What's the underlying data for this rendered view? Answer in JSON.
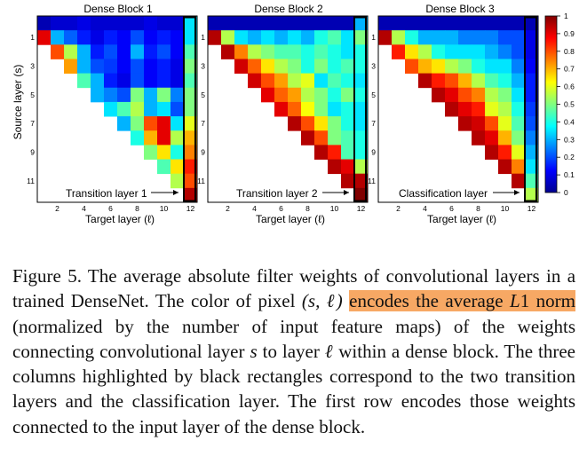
{
  "figure": {
    "panels": [
      {
        "title": "Dense Block 1",
        "annotation": "Transition layer 1"
      },
      {
        "title": "Dense Block 2",
        "annotation": "Transition layer 2"
      },
      {
        "title": "Dense Block 3",
        "annotation": "Classification layer"
      }
    ],
    "y_axis_label": "Source layer (s)",
    "x_axis_label": "Target layer (ℓ)",
    "x_ticks": [
      "2",
      "4",
      "6",
      "8",
      "10",
      "12"
    ],
    "y_ticks": [
      "1",
      "3",
      "5",
      "7",
      "9",
      "11"
    ],
    "colorbar_ticks": [
      "0",
      "0.1",
      "0.2",
      "0.3",
      "0.4",
      "0.5",
      "0.6",
      "0.7",
      "0.8",
      "0.9",
      "1"
    ]
  },
  "chart_data": {
    "type": "heatmap",
    "title": "",
    "xlabel": "Target layer (ℓ)",
    "ylabel": "Source layer (s)",
    "colorbar_range": [
      0,
      1
    ],
    "panels": [
      {
        "name": "Dense Block 1",
        "rows": [
          [
            0.05,
            0.08,
            0.08,
            0.1,
            0.08,
            0.08,
            0.08,
            0.08,
            0.1,
            0.08,
            0.08,
            0.35
          ],
          [
            0.9,
            0.3,
            0.22,
            0.15,
            0.1,
            0.15,
            0.12,
            0.2,
            0.12,
            0.15,
            0.12,
            0.35
          ],
          [
            null,
            0.8,
            0.55,
            0.3,
            0.15,
            0.2,
            0.12,
            0.3,
            0.15,
            0.2,
            0.12,
            0.45
          ],
          [
            null,
            null,
            0.72,
            0.3,
            0.2,
            0.18,
            0.12,
            0.2,
            0.12,
            0.15,
            0.1,
            0.5
          ],
          [
            null,
            null,
            null,
            0.45,
            0.3,
            0.15,
            0.1,
            0.2,
            0.12,
            0.15,
            0.1,
            0.45
          ],
          [
            null,
            null,
            null,
            null,
            0.3,
            0.25,
            0.2,
            0.5,
            0.3,
            0.5,
            0.25,
            0.5
          ],
          [
            null,
            null,
            null,
            null,
            null,
            0.35,
            0.45,
            0.55,
            0.3,
            0.35,
            0.2,
            0.5
          ],
          [
            null,
            null,
            null,
            null,
            null,
            null,
            0.3,
            0.5,
            0.8,
            0.9,
            0.35,
            0.6
          ],
          [
            null,
            null,
            null,
            null,
            null,
            null,
            null,
            0.4,
            0.7,
            0.9,
            0.55,
            0.7
          ],
          [
            null,
            null,
            null,
            null,
            null,
            null,
            null,
            null,
            0.5,
            0.65,
            0.4,
            0.75
          ],
          [
            null,
            null,
            null,
            null,
            null,
            null,
            null,
            null,
            null,
            0.45,
            0.65,
            0.85
          ],
          [
            null,
            null,
            null,
            null,
            null,
            null,
            null,
            null,
            null,
            null,
            0.55,
            0.8
          ],
          [
            null,
            null,
            null,
            null,
            null,
            null,
            null,
            null,
            null,
            null,
            null,
            0.95
          ]
        ]
      },
      {
        "name": "Dense Block 2",
        "rows": [
          [
            0.05,
            0.05,
            0.05,
            0.05,
            0.05,
            0.05,
            0.05,
            0.05,
            0.05,
            0.05,
            0.05,
            0.3
          ],
          [
            0.95,
            0.55,
            0.35,
            0.3,
            0.35,
            0.3,
            0.35,
            0.3,
            0.4,
            0.45,
            0.35,
            0.5
          ],
          [
            null,
            0.95,
            0.75,
            0.55,
            0.5,
            0.45,
            0.45,
            0.4,
            0.45,
            0.4,
            0.35,
            0.4
          ],
          [
            null,
            null,
            0.92,
            0.78,
            0.65,
            0.55,
            0.5,
            0.4,
            0.5,
            0.4,
            0.45,
            0.4
          ],
          [
            null,
            null,
            null,
            0.92,
            0.8,
            0.72,
            0.55,
            0.6,
            0.35,
            0.45,
            0.4,
            0.35
          ],
          [
            null,
            null,
            null,
            null,
            0.9,
            0.78,
            0.72,
            0.55,
            0.5,
            0.4,
            0.5,
            0.4
          ],
          [
            null,
            null,
            null,
            null,
            null,
            0.9,
            0.78,
            0.62,
            0.5,
            0.35,
            0.4,
            0.35
          ],
          [
            null,
            null,
            null,
            null,
            null,
            null,
            0.95,
            0.8,
            0.65,
            0.5,
            0.4,
            0.35
          ],
          [
            null,
            null,
            null,
            null,
            null,
            null,
            null,
            0.95,
            0.8,
            0.5,
            0.45,
            0.4
          ],
          [
            null,
            null,
            null,
            null,
            null,
            null,
            null,
            null,
            0.95,
            0.85,
            0.45,
            0.4
          ],
          [
            null,
            null,
            null,
            null,
            null,
            null,
            null,
            null,
            null,
            0.95,
            0.9,
            0.55
          ],
          [
            null,
            null,
            null,
            null,
            null,
            null,
            null,
            null,
            null,
            null,
            0.95,
            0.95
          ],
          [
            null,
            null,
            null,
            null,
            null,
            null,
            null,
            null,
            null,
            null,
            null,
            1.0
          ]
        ]
      },
      {
        "name": "Dense Block 3",
        "rows": [
          [
            0.05,
            0.05,
            0.05,
            0.05,
            0.05,
            0.05,
            0.05,
            0.05,
            0.05,
            0.05,
            0.05,
            0.05
          ],
          [
            0.95,
            0.55,
            0.4,
            0.3,
            0.3,
            0.3,
            0.25,
            0.25,
            0.25,
            0.2,
            0.2,
            0.1
          ],
          [
            null,
            0.85,
            0.65,
            0.55,
            0.4,
            0.35,
            0.35,
            0.35,
            0.3,
            0.25,
            0.2,
            0.1
          ],
          [
            null,
            null,
            0.8,
            0.7,
            0.65,
            0.55,
            0.5,
            0.4,
            0.35,
            0.35,
            0.25,
            0.12
          ],
          [
            null,
            null,
            null,
            0.95,
            0.85,
            0.8,
            0.7,
            0.55,
            0.45,
            0.4,
            0.3,
            0.15
          ],
          [
            null,
            null,
            null,
            null,
            0.95,
            0.9,
            0.8,
            0.75,
            0.55,
            0.5,
            0.35,
            0.15
          ],
          [
            null,
            null,
            null,
            null,
            null,
            0.95,
            0.9,
            0.85,
            0.6,
            0.55,
            0.4,
            0.18
          ],
          [
            null,
            null,
            null,
            null,
            null,
            null,
            0.95,
            0.92,
            0.8,
            0.6,
            0.45,
            0.2
          ],
          [
            null,
            null,
            null,
            null,
            null,
            null,
            null,
            0.95,
            0.9,
            0.7,
            0.5,
            0.25
          ],
          [
            null,
            null,
            null,
            null,
            null,
            null,
            null,
            null,
            0.95,
            0.85,
            0.6,
            0.3
          ],
          [
            null,
            null,
            null,
            null,
            null,
            null,
            null,
            null,
            null,
            0.95,
            0.75,
            0.35
          ],
          [
            null,
            null,
            null,
            null,
            null,
            null,
            null,
            null,
            null,
            null,
            0.95,
            0.45
          ],
          [
            null,
            null,
            null,
            null,
            null,
            null,
            null,
            null,
            null,
            null,
            null,
            0.55
          ]
        ]
      }
    ]
  },
  "caption": {
    "label": "Figure 5.",
    "p1": " The average absolute filter weights of convolutional lay­ers in a trained DenseNet. The color of pixel ",
    "math1": "(s, ℓ)",
    "hl1": "encodes the av­erage ",
    "hl_math": "L",
    "hl2": "1 norm",
    "p2": " (normalized by the number of input feature maps) of the weights connecting convolutional layer ",
    "math2": "s",
    "p3": " to layer ",
    "math3": "ℓ",
    "p4": " within a dense block. The three columns highlighted by black rectangles correspond to the two transition layers and the classification layer. The first row encodes those weights connected to the input layer of the dense block."
  }
}
